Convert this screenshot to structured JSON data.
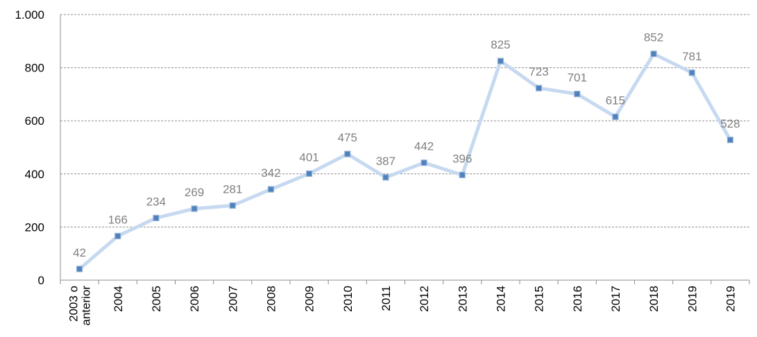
{
  "chart_data": {
    "type": "line",
    "categories": [
      "2003 o anterior",
      "2004",
      "2005",
      "2006",
      "2007",
      "2008",
      "2009",
      "2010",
      "2011",
      "2012",
      "2013",
      "2014",
      "2015",
      "2016",
      "2017",
      "2018",
      "2019",
      "2019"
    ],
    "values": [
      42,
      166,
      234,
      269,
      281,
      342,
      401,
      475,
      387,
      442,
      396,
      825,
      723,
      701,
      615,
      852,
      781,
      528
    ],
    "color": "#c6d9f0",
    "marker_color": "#4f81bd",
    "ylim": [
      0,
      1000
    ],
    "yticks": [
      0,
      200,
      400,
      600,
      800,
      {
        "value": 1000,
        "label": "1.000"
      }
    ],
    "grid": true
  }
}
